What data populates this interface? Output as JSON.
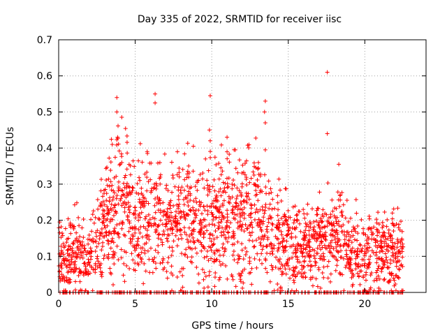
{
  "chart_data": {
    "type": "scatter",
    "title": "Day 335 of 2022, SRMTID for receiver iisc",
    "xlabel": "GPS time / hours",
    "ylabel": "SRMTID / TECUs",
    "xlim": [
      0,
      24
    ],
    "ylim": [
      0,
      0.7
    ],
    "xticks": [
      0,
      5,
      10,
      15,
      20
    ],
    "yticks": [
      0,
      0.1,
      0.2,
      0.3,
      0.4,
      0.5,
      0.6,
      0.7
    ],
    "xtick_labels": [
      "0",
      "5",
      "10",
      "15",
      "20"
    ],
    "ytick_labels": [
      "0",
      "0.1",
      "0.2",
      "0.3",
      "0.4",
      "0.5",
      "0.6",
      "0.7"
    ],
    "grid": true,
    "marker": "+",
    "series": [
      {
        "name": "SRMTID",
        "color": "#ff0000",
        "profile_x": [
          0,
          0.5,
          1,
          1.5,
          2,
          2.5,
          3,
          3.5,
          4,
          4.5,
          5,
          5.5,
          6,
          6.5,
          7,
          7.5,
          8,
          8.5,
          9,
          9.5,
          10,
          10.5,
          11,
          11.5,
          12,
          12.5,
          13,
          13.5,
          14,
          14.5,
          15,
          15.5,
          16,
          16.5,
          17,
          17.5,
          18,
          18.5,
          19,
          19.5,
          20,
          20.5,
          21,
          21.5,
          22,
          22.5
        ],
        "profile_y": [
          0.09,
          0.08,
          0.12,
          0.1,
          0.1,
          0.14,
          0.2,
          0.22,
          0.25,
          0.24,
          0.2,
          0.22,
          0.21,
          0.2,
          0.19,
          0.2,
          0.2,
          0.22,
          0.2,
          0.19,
          0.2,
          0.2,
          0.22,
          0.21,
          0.2,
          0.22,
          0.22,
          0.2,
          0.16,
          0.15,
          0.14,
          0.13,
          0.13,
          0.12,
          0.14,
          0.18,
          0.16,
          0.15,
          0.12,
          0.11,
          0.1,
          0.11,
          0.11,
          0.1,
          0.12,
          0.08
        ],
        "zero_band_x": [
          0,
          22.5
        ],
        "peaks": [
          {
            "x": 3.8,
            "y": 0.54
          },
          {
            "x": 3.8,
            "y": 0.5
          },
          {
            "x": 3.85,
            "y": 0.43
          },
          {
            "x": 3.5,
            "y": 0.41
          },
          {
            "x": 6.3,
            "y": 0.55
          },
          {
            "x": 6.3,
            "y": 0.525
          },
          {
            "x": 9.9,
            "y": 0.545
          },
          {
            "x": 9.85,
            "y": 0.45
          },
          {
            "x": 9.9,
            "y": 0.42
          },
          {
            "x": 11.0,
            "y": 0.43
          },
          {
            "x": 11.0,
            "y": 0.39
          },
          {
            "x": 13.5,
            "y": 0.53
          },
          {
            "x": 13.45,
            "y": 0.5
          },
          {
            "x": 13.5,
            "y": 0.47
          },
          {
            "x": 13.5,
            "y": 0.395
          },
          {
            "x": 17.55,
            "y": 0.61
          },
          {
            "x": 17.55,
            "y": 0.44
          },
          {
            "x": 18.3,
            "y": 0.355
          },
          {
            "x": 8.8,
            "y": 0.405
          },
          {
            "x": 5.8,
            "y": 0.385
          }
        ]
      }
    ]
  }
}
